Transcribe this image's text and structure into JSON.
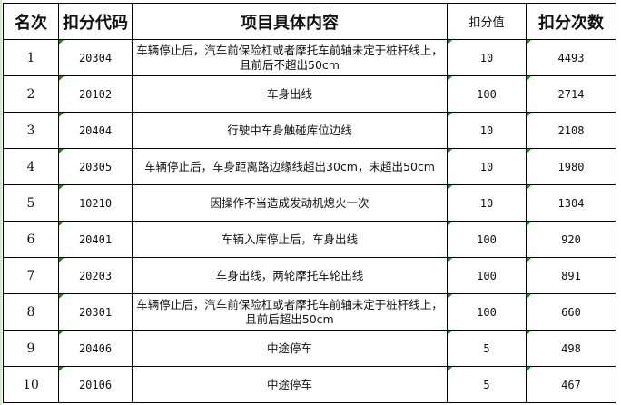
{
  "headers": {
    "rank": "名次",
    "code": "扣分代码",
    "content": "项目具体内容",
    "points": "扣分值",
    "count": "扣分次数"
  },
  "rows": [
    {
      "rank": "1",
      "code": "20304",
      "content": "车辆停止后，汽车前保险杠或者摩托车前轴未定于桩杆线上，且前后不超出50cm",
      "points": "10",
      "count": "4493"
    },
    {
      "rank": "2",
      "code": "20102",
      "content": "车身出线",
      "points": "100",
      "count": "2714"
    },
    {
      "rank": "3",
      "code": "20404",
      "content": "行驶中车身触碰库位边线",
      "points": "10",
      "count": "2108"
    },
    {
      "rank": "4",
      "code": "20305",
      "content": "车辆停止后，车身距离路边缘线超出30cm，未超出50cm",
      "points": "10",
      "count": "1980"
    },
    {
      "rank": "5",
      "code": "10210",
      "content": "因操作不当造成发动机熄火一次",
      "points": "10",
      "count": "1304"
    },
    {
      "rank": "6",
      "code": "20401",
      "content": "车辆入库停止后，车身出线",
      "points": "100",
      "count": "920"
    },
    {
      "rank": "7",
      "code": "20203",
      "content": "车身出线，两轮摩托车轮出线",
      "points": "100",
      "count": "891"
    },
    {
      "rank": "8",
      "code": "20301",
      "content": "车辆停止后，汽车前保险杠或者摩托车前轴未定于桩杆线上，且前后超出50cm",
      "points": "100",
      "count": "660"
    },
    {
      "rank": "9",
      "code": "20406",
      "content": "中途停车",
      "points": "5",
      "count": "498"
    },
    {
      "rank": "10",
      "code": "20106",
      "content": "中途停车",
      "points": "5",
      "count": "467"
    }
  ],
  "colors": {
    "indicator": "#1a8a1a"
  }
}
